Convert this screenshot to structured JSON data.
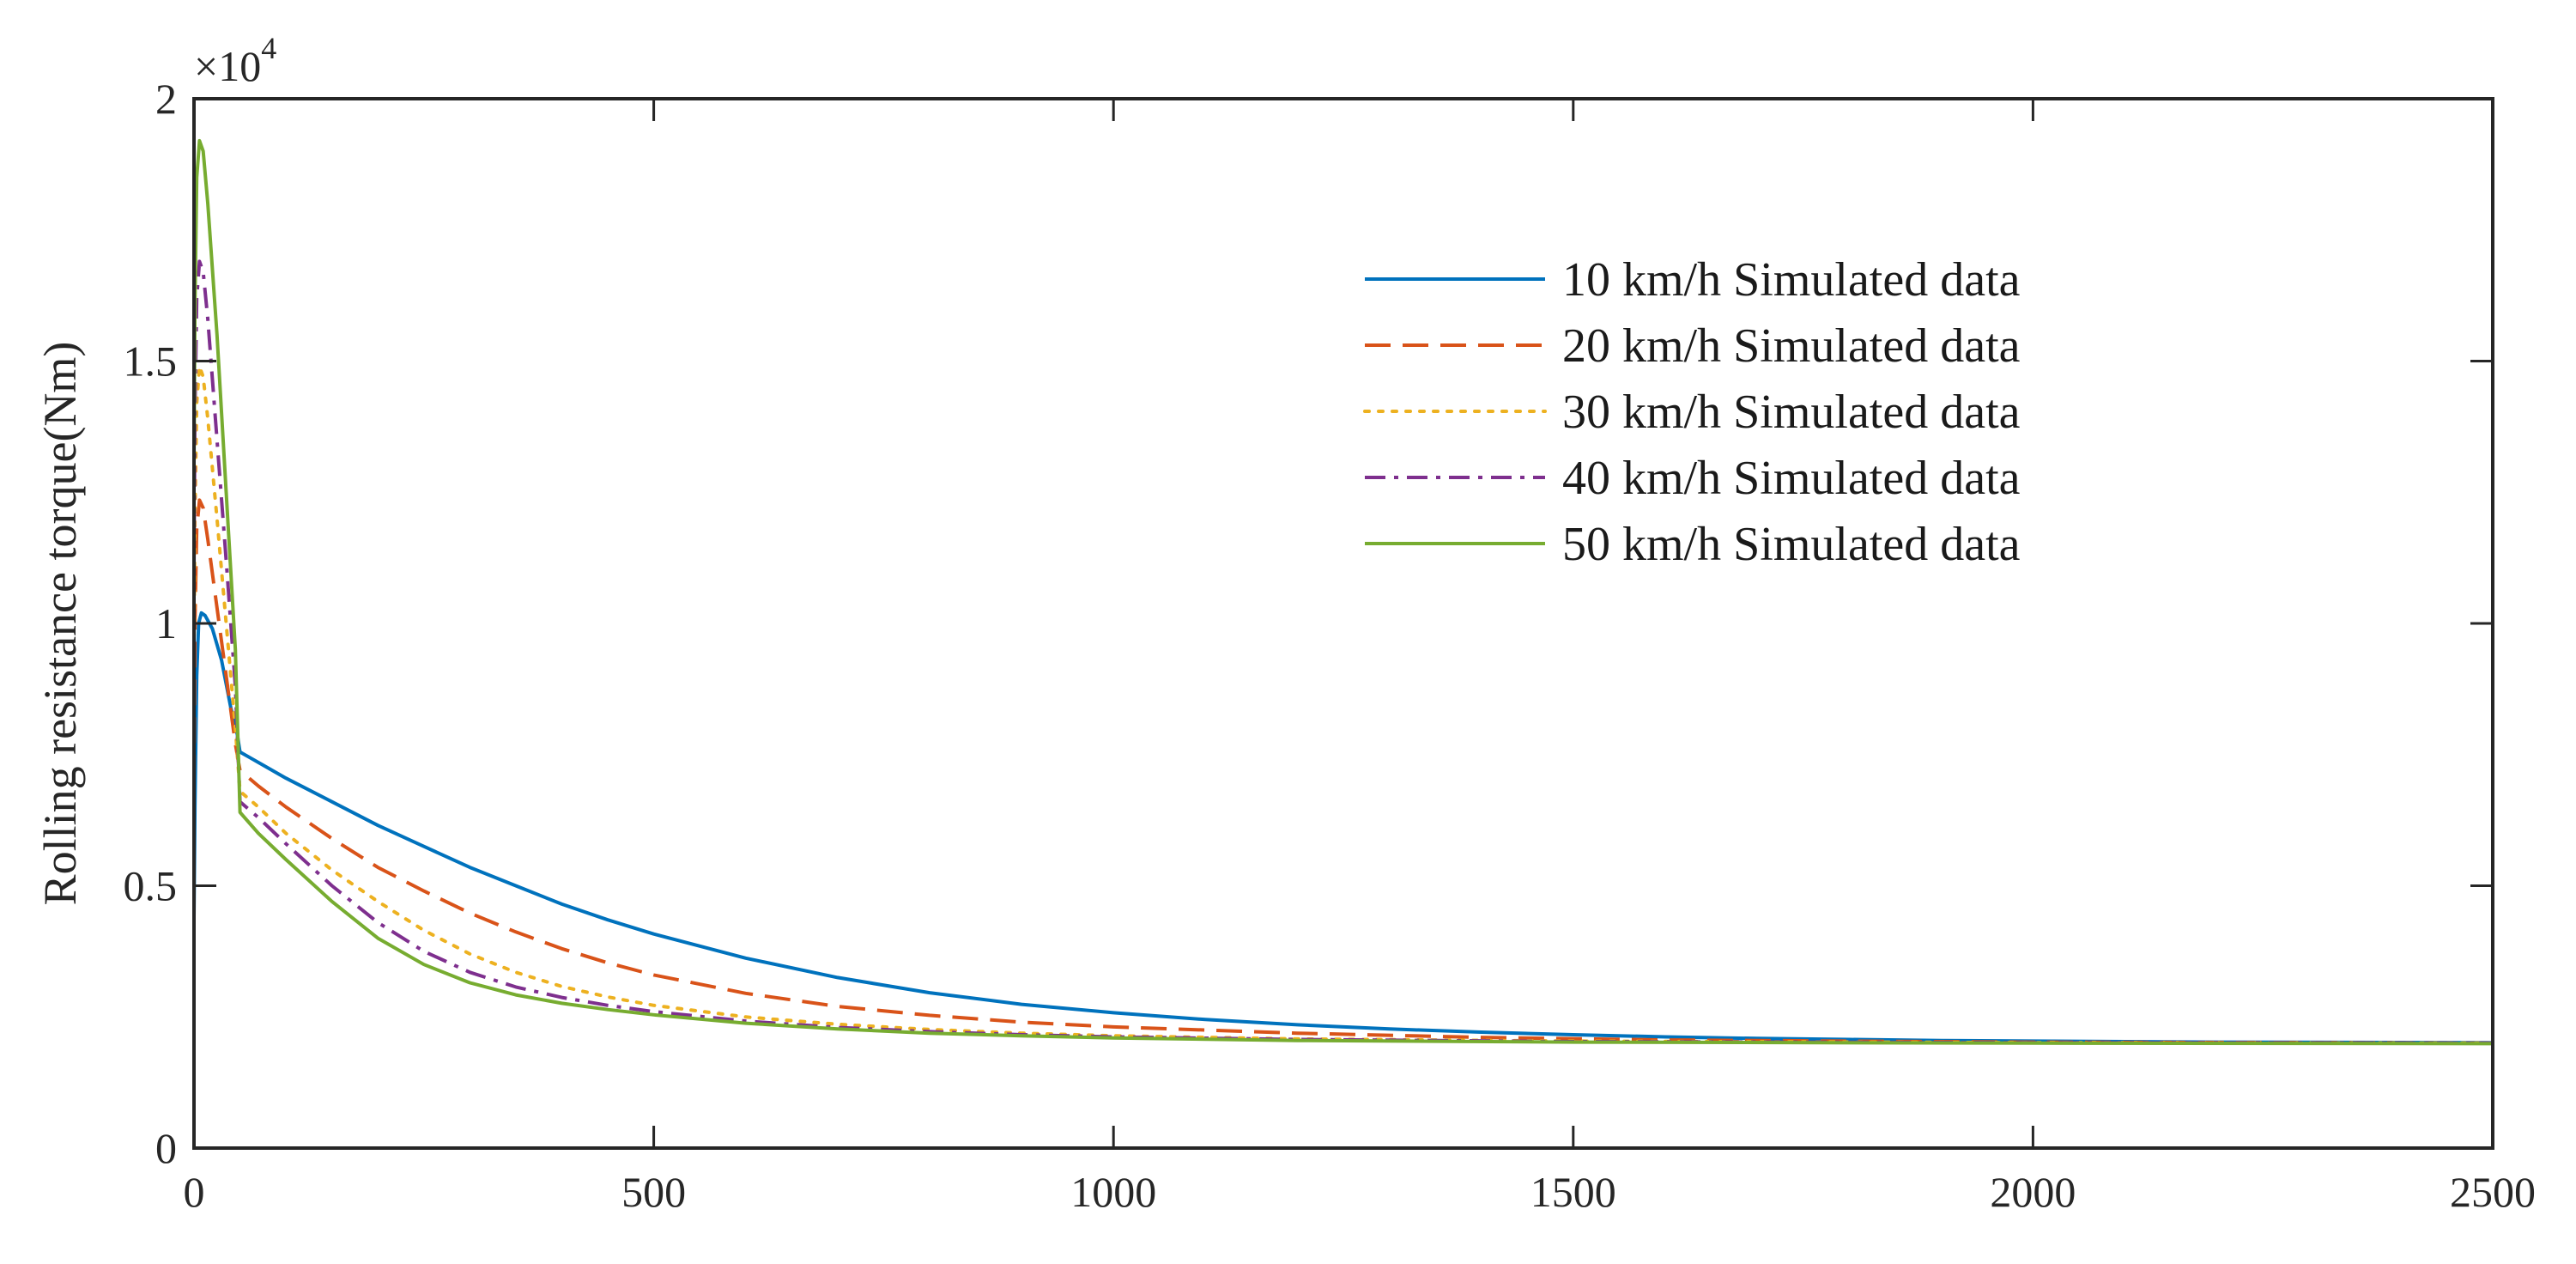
{
  "chart_data": {
    "type": "line",
    "title": "",
    "xlabel": "",
    "ylabel": "Rolling resistance torque(Nm)",
    "y_multiplier_label": {
      "base": "×10",
      "exponent": "4"
    },
    "xlim": [
      0,
      2500
    ],
    "ylim": [
      0,
      20000
    ],
    "x_ticks": [
      0,
      500,
      1000,
      1500,
      2000,
      2500
    ],
    "x_tick_labels": [
      "0",
      "500",
      "1000",
      "1500",
      "2000",
      "2500"
    ],
    "y_ticks": [
      0,
      5000,
      10000,
      15000,
      20000
    ],
    "y_tick_labels": [
      "0",
      "0.5",
      "1",
      "1.5",
      "2"
    ],
    "grid": false,
    "legend_position": "top-right",
    "series": [
      {
        "name": "10 km/h Simulated data",
        "color": "#0072BD",
        "dash": "solid",
        "points": [
          [
            0,
            4400
          ],
          [
            1,
            6500
          ],
          [
            3,
            9000
          ],
          [
            5,
            10000
          ],
          [
            8,
            10200
          ],
          [
            12,
            10150
          ],
          [
            20,
            9900
          ],
          [
            30,
            9300
          ],
          [
            40,
            8400
          ],
          [
            47,
            7900
          ],
          [
            50,
            7550
          ],
          [
            60,
            7450
          ],
          [
            100,
            7050
          ],
          [
            150,
            6600
          ],
          [
            200,
            6150
          ],
          [
            250,
            5750
          ],
          [
            300,
            5350
          ],
          [
            350,
            5000
          ],
          [
            400,
            4650
          ],
          [
            450,
            4350
          ],
          [
            500,
            4080
          ],
          [
            600,
            3620
          ],
          [
            700,
            3250
          ],
          [
            800,
            2960
          ],
          [
            900,
            2740
          ],
          [
            1000,
            2580
          ],
          [
            1100,
            2450
          ],
          [
            1200,
            2350
          ],
          [
            1300,
            2270
          ],
          [
            1400,
            2210
          ],
          [
            1500,
            2160
          ],
          [
            1600,
            2120
          ],
          [
            1700,
            2090
          ],
          [
            1800,
            2070
          ],
          [
            1900,
            2050
          ],
          [
            2000,
            2040
          ],
          [
            2200,
            2020
          ],
          [
            2500,
            2010
          ]
        ]
      },
      {
        "name": "20 km/h Simulated data",
        "color": "#D95319",
        "dash": "long-dash",
        "points": [
          [
            0,
            7000
          ],
          [
            1,
            10000
          ],
          [
            3,
            11800
          ],
          [
            6,
            12350
          ],
          [
            10,
            12200
          ],
          [
            15,
            11600
          ],
          [
            25,
            10300
          ],
          [
            35,
            9000
          ],
          [
            45,
            7700
          ],
          [
            50,
            7200
          ],
          [
            70,
            6900
          ],
          [
            100,
            6500
          ],
          [
            150,
            5900
          ],
          [
            200,
            5350
          ],
          [
            250,
            4900
          ],
          [
            300,
            4480
          ],
          [
            350,
            4120
          ],
          [
            400,
            3800
          ],
          [
            450,
            3530
          ],
          [
            500,
            3300
          ],
          [
            600,
            2950
          ],
          [
            700,
            2700
          ],
          [
            800,
            2530
          ],
          [
            900,
            2400
          ],
          [
            1000,
            2310
          ],
          [
            1200,
            2190
          ],
          [
            1400,
            2110
          ],
          [
            1600,
            2060
          ],
          [
            1800,
            2040
          ],
          [
            2000,
            2020
          ],
          [
            2500,
            2000
          ]
        ]
      },
      {
        "name": "30 km/h Simulated data",
        "color": "#EDB120",
        "dash": "dotted",
        "points": [
          [
            0,
            9500
          ],
          [
            1,
            12000
          ],
          [
            3,
            14200
          ],
          [
            6,
            14900
          ],
          [
            10,
            14700
          ],
          [
            15,
            13900
          ],
          [
            25,
            12000
          ],
          [
            35,
            10000
          ],
          [
            45,
            8000
          ],
          [
            50,
            6800
          ],
          [
            70,
            6500
          ],
          [
            100,
            6000
          ],
          [
            150,
            5300
          ],
          [
            200,
            4700
          ],
          [
            250,
            4150
          ],
          [
            300,
            3700
          ],
          [
            350,
            3350
          ],
          [
            400,
            3080
          ],
          [
            450,
            2880
          ],
          [
            500,
            2720
          ],
          [
            600,
            2500
          ],
          [
            700,
            2360
          ],
          [
            800,
            2260
          ],
          [
            900,
            2190
          ],
          [
            1000,
            2140
          ],
          [
            1200,
            2080
          ],
          [
            1500,
            2040
          ],
          [
            2000,
            2010
          ],
          [
            2500,
            2000
          ]
        ]
      },
      {
        "name": "40 km/h Simulated data",
        "color": "#7E2F8E",
        "dash": "dash-dot",
        "points": [
          [
            0,
            11000
          ],
          [
            1,
            14000
          ],
          [
            3,
            16200
          ],
          [
            6,
            16900
          ],
          [
            10,
            16700
          ],
          [
            15,
            15800
          ],
          [
            25,
            13500
          ],
          [
            35,
            11200
          ],
          [
            45,
            8800
          ],
          [
            50,
            6600
          ],
          [
            70,
            6300
          ],
          [
            100,
            5800
          ],
          [
            150,
            5000
          ],
          [
            200,
            4300
          ],
          [
            250,
            3750
          ],
          [
            300,
            3350
          ],
          [
            350,
            3070
          ],
          [
            400,
            2870
          ],
          [
            450,
            2720
          ],
          [
            500,
            2600
          ],
          [
            600,
            2420
          ],
          [
            700,
            2300
          ],
          [
            800,
            2220
          ],
          [
            900,
            2160
          ],
          [
            1000,
            2120
          ],
          [
            1200,
            2070
          ],
          [
            1500,
            2030
          ],
          [
            2000,
            2010
          ],
          [
            2500,
            2000
          ]
        ]
      },
      {
        "name": "50 km/h Simulated data",
        "color": "#77AC30",
        "dash": "solid",
        "points": [
          [
            0,
            13000
          ],
          [
            1,
            16000
          ],
          [
            3,
            18500
          ],
          [
            6,
            19200
          ],
          [
            10,
            19000
          ],
          [
            15,
            18000
          ],
          [
            25,
            15500
          ],
          [
            35,
            12500
          ],
          [
            45,
            9500
          ],
          [
            50,
            6400
          ],
          [
            70,
            6000
          ],
          [
            100,
            5500
          ],
          [
            150,
            4700
          ],
          [
            200,
            4000
          ],
          [
            250,
            3500
          ],
          [
            300,
            3150
          ],
          [
            350,
            2920
          ],
          [
            400,
            2760
          ],
          [
            450,
            2640
          ],
          [
            500,
            2540
          ],
          [
            600,
            2380
          ],
          [
            700,
            2270
          ],
          [
            800,
            2190
          ],
          [
            900,
            2140
          ],
          [
            1000,
            2100
          ],
          [
            1200,
            2050
          ],
          [
            1500,
            2020
          ],
          [
            2000,
            2000
          ],
          [
            2500,
            1990
          ]
        ]
      }
    ]
  }
}
